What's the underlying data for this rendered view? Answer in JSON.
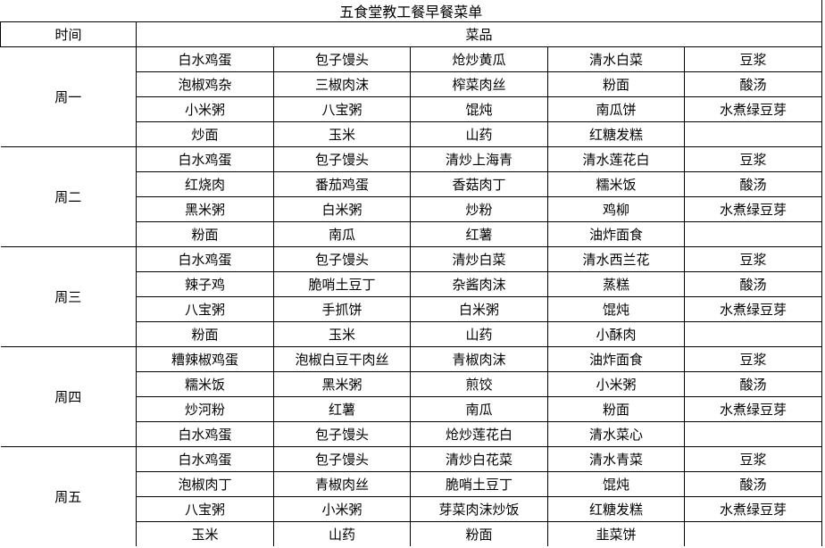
{
  "title": "五食堂教工餐早餐菜单",
  "colors": {
    "background": "#ffffff",
    "border": "#000000",
    "text": "#000000"
  },
  "table": {
    "time_header": "时间",
    "dishes_header": "菜品",
    "days": [
      {
        "label": "周一",
        "rows": [
          [
            "白水鸡蛋",
            "包子馒头",
            "炝炒黄瓜",
            "清水白菜",
            "豆浆"
          ],
          [
            "泡椒鸡杂",
            "三椒肉沫",
            "榨菜肉丝",
            "粉面",
            "酸汤"
          ],
          [
            "小米粥",
            "八宝粥",
            "馄炖",
            "南瓜饼",
            "水煮绿豆芽"
          ],
          [
            "炒面",
            "玉米",
            "山药",
            "红糖发糕",
            ""
          ]
        ]
      },
      {
        "label": "周二",
        "rows": [
          [
            "白水鸡蛋",
            "包子馒头",
            "清炒上海青",
            "清水莲花白",
            "豆浆"
          ],
          [
            "红烧肉",
            "番茄鸡蛋",
            "香菇肉丁",
            "糯米饭",
            "酸汤"
          ],
          [
            "黑米粥",
            "白米粥",
            "炒粉",
            "鸡柳",
            "水煮绿豆芽"
          ],
          [
            "粉面",
            "南瓜",
            "红薯",
            "油炸面食",
            ""
          ]
        ]
      },
      {
        "label": "周三",
        "rows": [
          [
            "白水鸡蛋",
            "包子馒头",
            "清炒白菜",
            "清水西兰花",
            "豆浆"
          ],
          [
            "辣子鸡",
            "脆哨土豆丁",
            "杂酱肉沫",
            "蒸糕",
            "酸汤"
          ],
          [
            "八宝粥",
            "手抓饼",
            "白米粥",
            "馄炖",
            "水煮绿豆芽"
          ],
          [
            "粉面",
            "玉米",
            "山药",
            "小酥肉",
            ""
          ]
        ]
      },
      {
        "label": "周四",
        "rows": [
          [
            "糟辣椒鸡蛋",
            "泡椒白豆干肉丝",
            "青椒肉沫",
            "油炸面食",
            "豆浆"
          ],
          [
            "糯米饭",
            "黑米粥",
            "煎饺",
            "小米粥",
            "酸汤"
          ],
          [
            "炒河粉",
            "红薯",
            "南瓜",
            "粉面",
            "水煮绿豆芽"
          ],
          [
            "白水鸡蛋",
            "包子馒头",
            "炝炒莲花白",
            "清水菜心",
            ""
          ]
        ]
      },
      {
        "label": "周五",
        "rows": [
          [
            "白水鸡蛋",
            "包子馒头",
            "清炒白花菜",
            "清水青菜",
            "豆浆"
          ],
          [
            "泡椒肉丁",
            "青椒肉丝",
            "脆哨土豆丁",
            "馄炖",
            "酸汤"
          ],
          [
            "八宝粥",
            "小米粥",
            "芽菜肉沫炒饭",
            "红糖发糕",
            "水煮绿豆芽"
          ],
          [
            "玉米",
            "山药",
            "粉面",
            "韭菜饼",
            ""
          ]
        ]
      }
    ]
  }
}
